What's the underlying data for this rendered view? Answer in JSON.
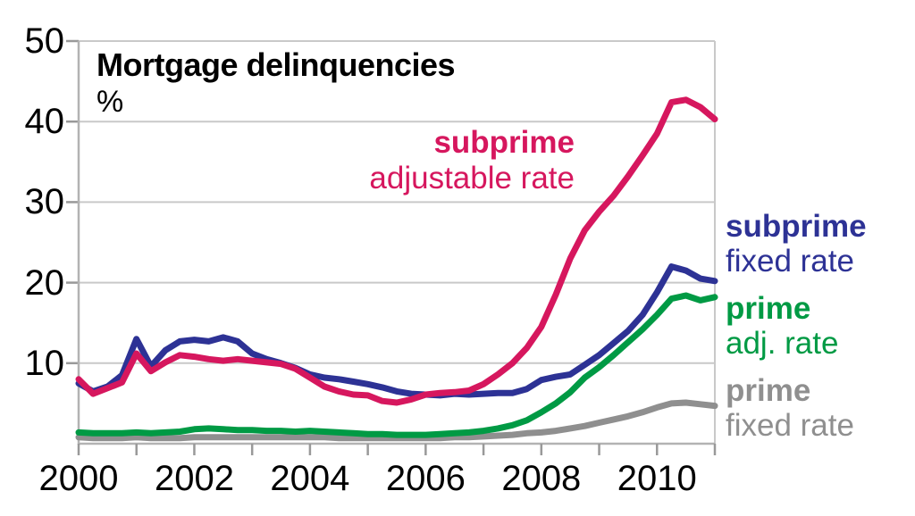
{
  "title": "Mortgage delinquencies",
  "unit": "%",
  "inline_label": {
    "line1": "subprime",
    "line2": "adjustable rate"
  },
  "legend": [
    {
      "title": "subprime",
      "subtitle": "fixed rate",
      "series": "subprime fixed rate"
    },
    {
      "title": "prime",
      "subtitle": "adj. rate",
      "series": "prime adjustable rate"
    },
    {
      "title": "prime",
      "subtitle": "fixed rate",
      "series": "prime fixed rate"
    }
  ],
  "colors": {
    "subprime_arm": "#d6175e",
    "subprime_frm": "#2d3295",
    "prime_arm": "#009a44",
    "prime_frm": "#8f8f8f",
    "gridline": "#c9c9c9",
    "axis": "#b3b3b3",
    "tick": "#999999",
    "text": "#000000"
  },
  "chart_data": {
    "type": "line",
    "title": "Mortgage delinquencies",
    "ylabel": "%",
    "xlabel": "",
    "grid": true,
    "legend_position": "right",
    "xlim": [
      2000,
      2011
    ],
    "ylim": [
      0,
      50
    ],
    "y_ticks": [
      10,
      20,
      30,
      40,
      50
    ],
    "x_ticks_minor": [
      2000,
      2001,
      2002,
      2003,
      2004,
      2005,
      2006,
      2007,
      2008,
      2009,
      2010,
      2011
    ],
    "x_ticks_major": [
      2000,
      2002,
      2004,
      2006,
      2008,
      2010
    ],
    "x": [
      2000,
      2000.25,
      2000.5,
      2000.75,
      2001,
      2001.25,
      2001.5,
      2001.75,
      2002,
      2002.25,
      2002.5,
      2002.75,
      2003,
      2003.25,
      2003.5,
      2003.75,
      2004,
      2004.25,
      2004.5,
      2004.75,
      2005,
      2005.25,
      2005.5,
      2005.75,
      2006,
      2006.25,
      2006.5,
      2006.75,
      2007,
      2007.25,
      2007.5,
      2007.75,
      2008,
      2008.25,
      2008.5,
      2008.75,
      2009,
      2009.25,
      2009.5,
      2009.75,
      2010,
      2010.25,
      2010.5,
      2010.75,
      2011
    ],
    "series": [
      {
        "name": "subprime adjustable rate",
        "color_key": "subprime_arm",
        "values": [
          8.0,
          6.2,
          6.9,
          7.6,
          11.2,
          9.0,
          10.1,
          11.0,
          10.8,
          10.5,
          10.3,
          10.5,
          10.3,
          10.1,
          9.9,
          9.3,
          8.2,
          7.1,
          6.5,
          6.1,
          6.0,
          5.3,
          5.1,
          5.5,
          6.1,
          6.3,
          6.4,
          6.6,
          7.4,
          8.6,
          10.0,
          11.9,
          14.5,
          18.5,
          23.0,
          26.5,
          28.8,
          30.8,
          33.2,
          35.8,
          38.5,
          42.4,
          42.7,
          41.8,
          40.3
        ]
      },
      {
        "name": "subprime fixed rate",
        "color_key": "subprime_frm",
        "values": [
          7.5,
          6.5,
          7.1,
          8.5,
          13.0,
          9.6,
          11.6,
          12.7,
          12.9,
          12.7,
          13.2,
          12.7,
          11.2,
          10.5,
          10.0,
          9.4,
          8.6,
          8.2,
          8.0,
          7.7,
          7.4,
          7.0,
          6.5,
          6.2,
          6.1,
          6.0,
          6.2,
          6.1,
          6.2,
          6.3,
          6.3,
          6.8,
          7.9,
          8.3,
          8.6,
          9.8,
          11.0,
          12.5,
          14.0,
          16.0,
          18.8,
          22.0,
          21.5,
          20.5,
          20.2
        ]
      },
      {
        "name": "prime adjustable rate",
        "color_key": "prime_arm",
        "values": [
          1.4,
          1.3,
          1.3,
          1.3,
          1.4,
          1.3,
          1.4,
          1.5,
          1.8,
          1.9,
          1.8,
          1.7,
          1.7,
          1.6,
          1.6,
          1.5,
          1.6,
          1.5,
          1.4,
          1.3,
          1.2,
          1.2,
          1.1,
          1.1,
          1.1,
          1.2,
          1.3,
          1.4,
          1.6,
          1.9,
          2.3,
          2.9,
          3.9,
          5.0,
          6.4,
          8.2,
          9.5,
          11.0,
          12.6,
          14.2,
          16.0,
          18.0,
          18.4,
          17.8,
          18.2
        ]
      },
      {
        "name": "prime fixed rate",
        "color_key": "prime_frm",
        "values": [
          0.8,
          0.7,
          0.7,
          0.7,
          0.8,
          0.7,
          0.7,
          0.7,
          0.8,
          0.8,
          0.8,
          0.8,
          0.8,
          0.8,
          0.8,
          0.8,
          0.8,
          0.8,
          0.7,
          0.7,
          0.7,
          0.7,
          0.7,
          0.7,
          0.7,
          0.7,
          0.8,
          0.8,
          0.9,
          1.0,
          1.1,
          1.3,
          1.4,
          1.6,
          1.9,
          2.2,
          2.6,
          3.0,
          3.4,
          3.9,
          4.5,
          5.0,
          5.1,
          4.9,
          4.7
        ]
      }
    ]
  }
}
